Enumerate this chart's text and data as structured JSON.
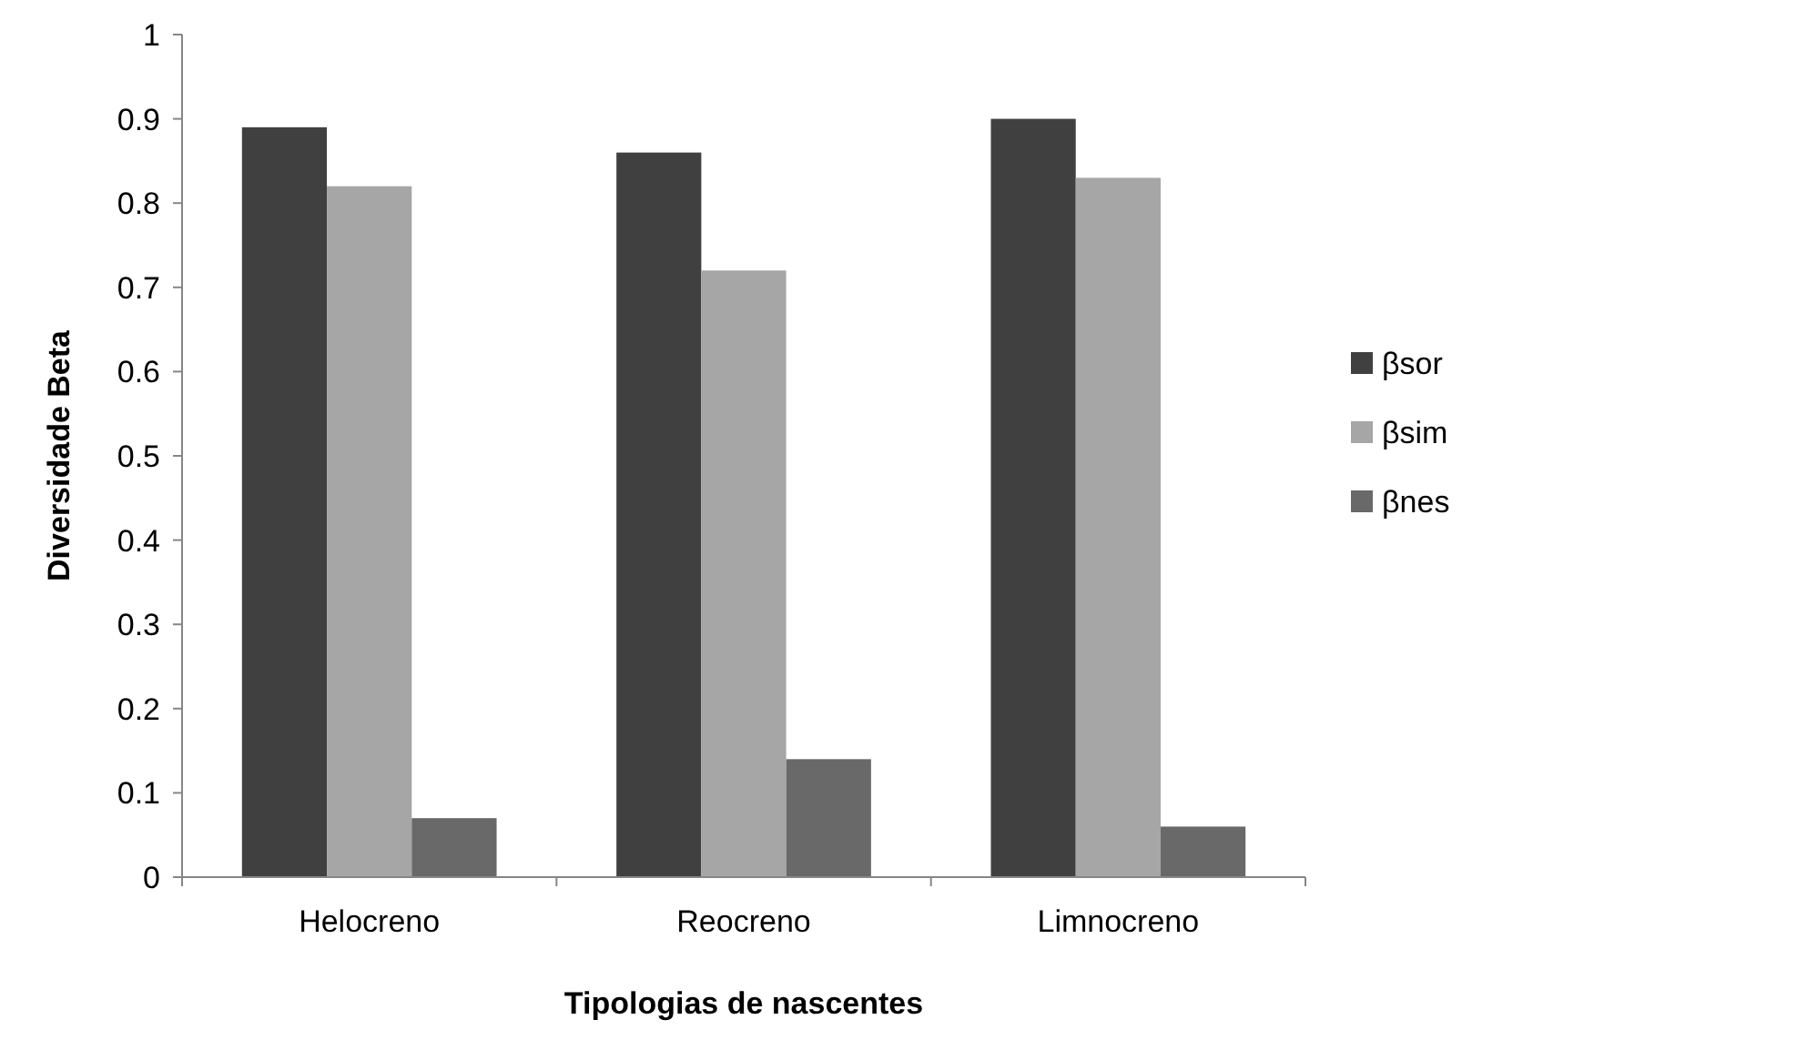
{
  "chart_data": {
    "type": "bar",
    "xlabel": "Tipologias de nascentes",
    "ylabel": "Diversidade Beta",
    "categories": [
      "Helocreno",
      "Reocreno",
      "Limnocreno"
    ],
    "series": [
      {
        "name": "βsor",
        "color": "#404040",
        "values": [
          0.89,
          0.86,
          0.9
        ]
      },
      {
        "name": "βsim",
        "color": "#a6a6a6",
        "values": [
          0.82,
          0.72,
          0.83
        ]
      },
      {
        "name": "βnes",
        "color": "#696969",
        "values": [
          0.07,
          0.14,
          0.06
        ]
      }
    ],
    "ylim": [
      0,
      1
    ],
    "yticks": [
      0,
      0.1,
      0.2,
      0.3,
      0.4,
      0.5,
      0.6,
      0.7,
      0.8,
      0.9,
      1
    ],
    "grid": false,
    "legend": "right"
  }
}
